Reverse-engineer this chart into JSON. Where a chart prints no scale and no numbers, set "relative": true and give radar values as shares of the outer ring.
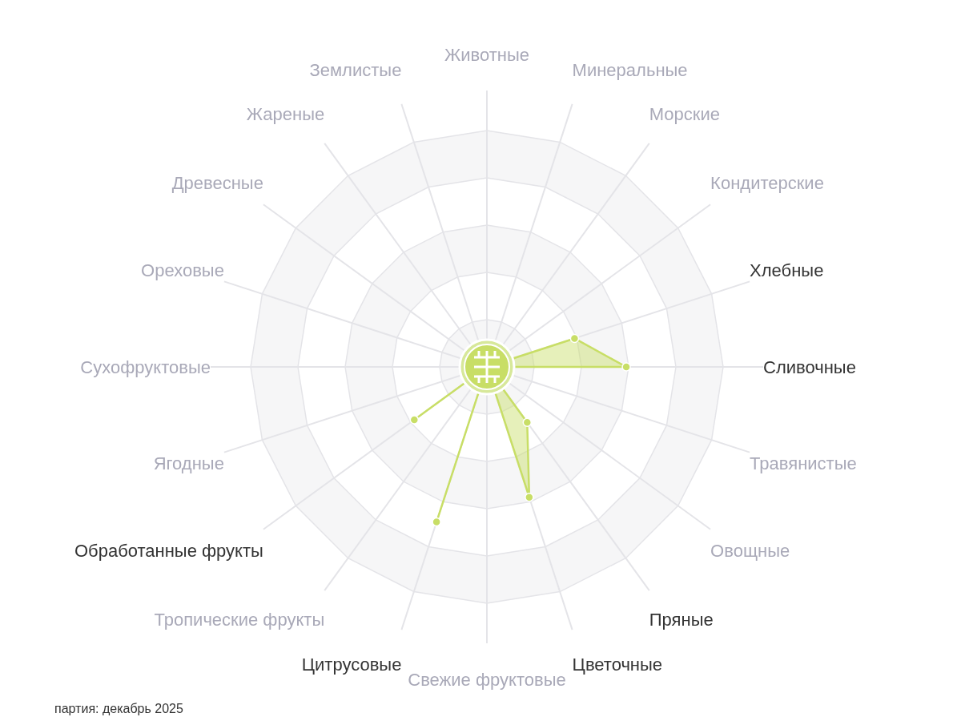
{
  "chart_data": {
    "type": "radar",
    "relative": true,
    "categories": [
      "Животные",
      "Минеральные",
      "Морские",
      "Кондитерские",
      "Хлебные",
      "Сливочные",
      "Травянистые",
      "Овощные",
      "Пряные",
      "Цветочные",
      "Свежие фруктовые",
      "Цитрусовые",
      "Тропические фрукты",
      "Обработанные фрукты",
      "Ягодные",
      "Сухофруктовые",
      "Ореховые",
      "Древесные",
      "Жареные",
      "Землистые"
    ],
    "series": [
      {
        "color": "#c8de66",
        "values": [
          null,
          null,
          null,
          null,
          0.39,
          0.59,
          null,
          null,
          0.29,
          0.58,
          null,
          0.69,
          null,
          0.38,
          null,
          null,
          null,
          null,
          null,
          null
        ]
      }
    ],
    "marker": "circle",
    "annotations": [
      "партия: декабрь 2025"
    ]
  }
}
